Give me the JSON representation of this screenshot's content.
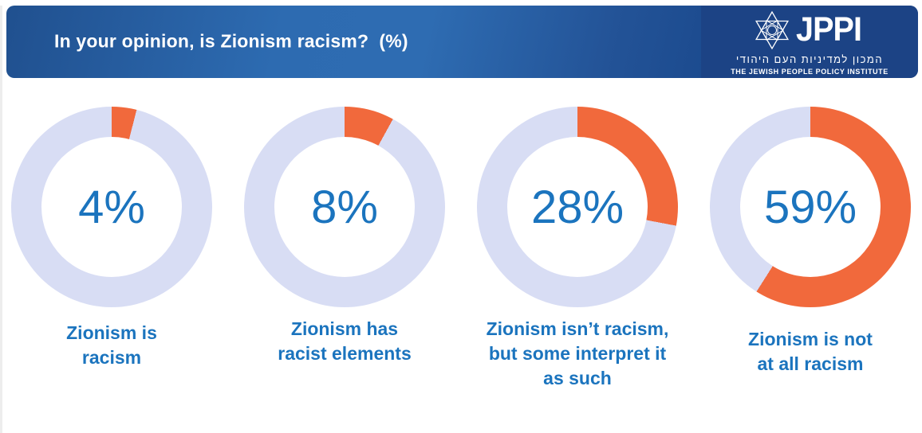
{
  "header": {
    "title": "In your opinion, is Zionism racism?  (%)",
    "logo": {
      "acronym": "JPPI",
      "hebrew": "המכון למדיניות העם היהודי",
      "english": "THE JEWISH PEOPLE POLICY INSTITUTE",
      "icon": "star-of-david-icon"
    }
  },
  "colors": {
    "orange": "#F1693C",
    "ring": "#D8DDF4",
    "blue_text": "#1B74BE",
    "header_gradient_start": "#2E6CB2",
    "header_gradient_end": "#1C4586",
    "logo_block_navy": "#1C4385"
  },
  "donuts": [
    {
      "value": 4,
      "display": "4%",
      "label_lines": [
        "Zionism is",
        "racism"
      ]
    },
    {
      "value": 8,
      "display": "8%",
      "label_lines": [
        "Zionism has",
        "racist elements"
      ]
    },
    {
      "value": 28,
      "display": "28%",
      "label_lines": [
        "Zionism isn’t racism,",
        "but some interpret it",
        "as such"
      ]
    },
    {
      "value": 59,
      "display": "59%",
      "label_lines": [
        "Zionism is not",
        "at all racism"
      ]
    }
  ],
  "chart_data": {
    "type": "pie",
    "variant": "donut-small-multiples",
    "title": "In your opinion, is Zionism racism? (%)",
    "unit": "%",
    "categories": [
      "Zionism is racism",
      "Zionism has racist elements",
      "Zionism isn’t racism, but some interpret it as such",
      "Zionism is not at all racism"
    ],
    "values": [
      4,
      8,
      28,
      59
    ],
    "center_labels": [
      "4%",
      "8%",
      "28%",
      "59%"
    ],
    "slice_color": "#F1693C",
    "remainder_color": "#D8DDF4",
    "start_angle_deg": 0,
    "direction": "clockwise",
    "legend": "none"
  }
}
